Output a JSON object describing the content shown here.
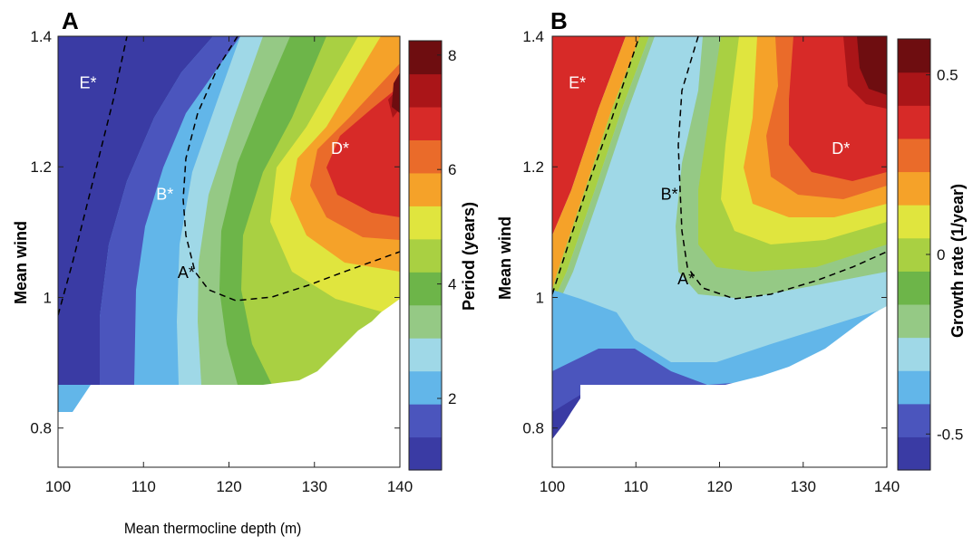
{
  "chart_data": [
    {
      "panel": "A",
      "type": "heatmap",
      "xlabel": "Mean thermocline depth (m)",
      "ylabel": "Mean wind",
      "xlim": [
        100,
        140
      ],
      "ylim": [
        0.74,
        1.4
      ],
      "xticks": [
        "100",
        "110",
        "120",
        "130",
        "140"
      ],
      "yticks": [
        "0.8",
        "1",
        "1.2",
        "1.4"
      ],
      "colorbar": {
        "label": "Period (years)",
        "ticks": [
          "2",
          "4",
          "6",
          "8"
        ],
        "range": [
          0.75,
          8.25
        ]
      },
      "colors": [
        "#3a3ba4",
        "#4b55bd",
        "#62b6e9",
        "#9fd8e7",
        "#95c985",
        "#6db549",
        "#a9d042",
        "#e0e53e",
        "#f5a229",
        "#ea6b2a",
        "#d72a28",
        "#aa1518",
        "#6e0d10"
      ],
      "points": [
        {
          "label": "A*",
          "x": 115,
          "y": 1.03,
          "color": "#000000"
        },
        {
          "label": "B*",
          "x": 112.5,
          "y": 1.15,
          "color": "#ffffff"
        },
        {
          "label": "D*",
          "x": 133,
          "y": 1.22,
          "color": "#ffffff"
        },
        {
          "label": "E*",
          "x": 103.5,
          "y": 1.32,
          "color": "#ffffff"
        }
      ]
    },
    {
      "panel": "B",
      "type": "heatmap",
      "xlabel": "",
      "ylabel": "Mean wind",
      "xlim": [
        100,
        140
      ],
      "ylim": [
        0.74,
        1.4
      ],
      "xticks": [
        "100",
        "110",
        "120",
        "130",
        "140"
      ],
      "yticks": [
        "0.8",
        "1",
        "1.2",
        "1.4"
      ],
      "colorbar": {
        "label": "Growth rate (1/year)",
        "ticks": [
          "-0.5",
          "0",
          "0.5"
        ],
        "range": [
          -0.6,
          0.6
        ]
      },
      "colors": [
        "#3a3ba4",
        "#4b55bd",
        "#62b6e9",
        "#9fd8e7",
        "#95c985",
        "#6db549",
        "#a9d042",
        "#e0e53e",
        "#f5a229",
        "#ea6b2a",
        "#d72a28",
        "#aa1518",
        "#6e0d10"
      ],
      "points": [
        {
          "label": "A*",
          "x": 116,
          "y": 1.02,
          "color": "#000000"
        },
        {
          "label": "B*",
          "x": 114,
          "y": 1.15,
          "color": "#000000"
        },
        {
          "label": "D*",
          "x": 134.5,
          "y": 1.22,
          "color": "#ffffff"
        },
        {
          "label": "E*",
          "x": 103,
          "y": 1.32,
          "color": "#ffffff"
        }
      ]
    }
  ]
}
